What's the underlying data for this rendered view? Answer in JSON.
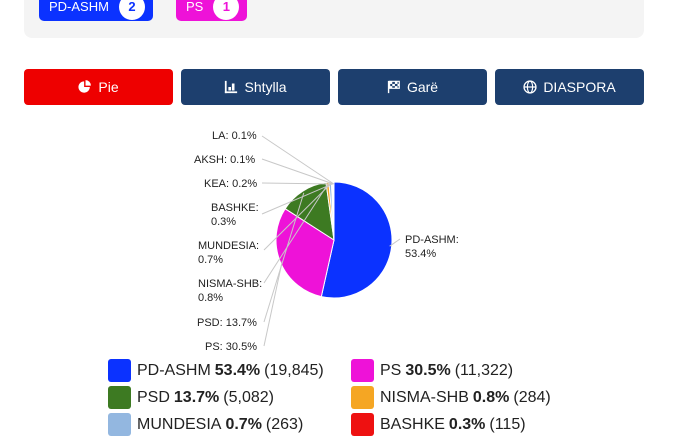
{
  "seat_badges": [
    {
      "label": "PD-ASHM",
      "count": "2",
      "color": "#0b32ff"
    },
    {
      "label": "PS",
      "count": "1",
      "color": "#ee12d8"
    }
  ],
  "tabs": [
    {
      "label": "Pie",
      "icon": "pie-chart-icon",
      "color": "#ee0000",
      "active": true
    },
    {
      "label": "Shtylla",
      "icon": "bar-chart-icon",
      "color": "#1d3f6e",
      "active": false
    },
    {
      "label": "Garë",
      "icon": "race-flag-icon",
      "color": "#1d3f6e",
      "active": false
    },
    {
      "label": "DIASPORA",
      "icon": "globe-icon",
      "color": "#1d3f6e",
      "active": false
    }
  ],
  "chart_data": {
    "type": "pie",
    "slices": [
      {
        "name": "PD-ASHM",
        "percent": 53.4,
        "votes": 19845,
        "color": "#0b32ff",
        "label": "PD-ASHM: 53.4%"
      },
      {
        "name": "PS",
        "percent": 30.5,
        "votes": 11322,
        "color": "#ee12d8",
        "label": "PS: 30.5%"
      },
      {
        "name": "PSD",
        "percent": 13.7,
        "votes": 5082,
        "color": "#3d7a22",
        "label": "PSD: 13.7%"
      },
      {
        "name": "NISMA-SHB",
        "percent": 0.8,
        "votes": 284,
        "color": "#f5a623",
        "label": "NISMA-SHB: 0.8%"
      },
      {
        "name": "MUNDESIA",
        "percent": 0.7,
        "votes": 263,
        "color": "#93b7e0",
        "label": "MUNDESIA: 0.7%"
      },
      {
        "name": "BASHKE",
        "percent": 0.3,
        "votes": 115,
        "color": "#ee1111",
        "label": "BASHKE: 0.3%"
      },
      {
        "name": "KEA",
        "percent": 0.2,
        "votes": null,
        "color": "#8b5a2b",
        "label": "KEA: 0.2%"
      },
      {
        "name": "AKSH",
        "percent": 0.1,
        "votes": null,
        "color": "#777777",
        "label": "AKSH: 0.1%"
      },
      {
        "name": "LA",
        "percent": 0.1,
        "votes": null,
        "color": "#aaaaaa",
        "label": "LA: 0.1%"
      }
    ]
  },
  "legend": [
    {
      "name": "PD-ASHM",
      "pct": "53.4%",
      "votes": "(19,845)",
      "color": "#0b32ff"
    },
    {
      "name": "PS",
      "pct": "30.5%",
      "votes": "(11,322)",
      "color": "#ee12d8"
    },
    {
      "name": "PSD",
      "pct": "13.7%",
      "votes": "(5,082)",
      "color": "#3d7a22"
    },
    {
      "name": "NISMA-SHB",
      "pct": "0.8%",
      "votes": "(284)",
      "color": "#f5a623"
    },
    {
      "name": "MUNDESIA",
      "pct": "0.7%",
      "votes": "(263)",
      "color": "#93b7e0"
    },
    {
      "name": "BASHKE",
      "pct": "0.3%",
      "votes": "(115)",
      "color": "#ee1111"
    }
  ]
}
